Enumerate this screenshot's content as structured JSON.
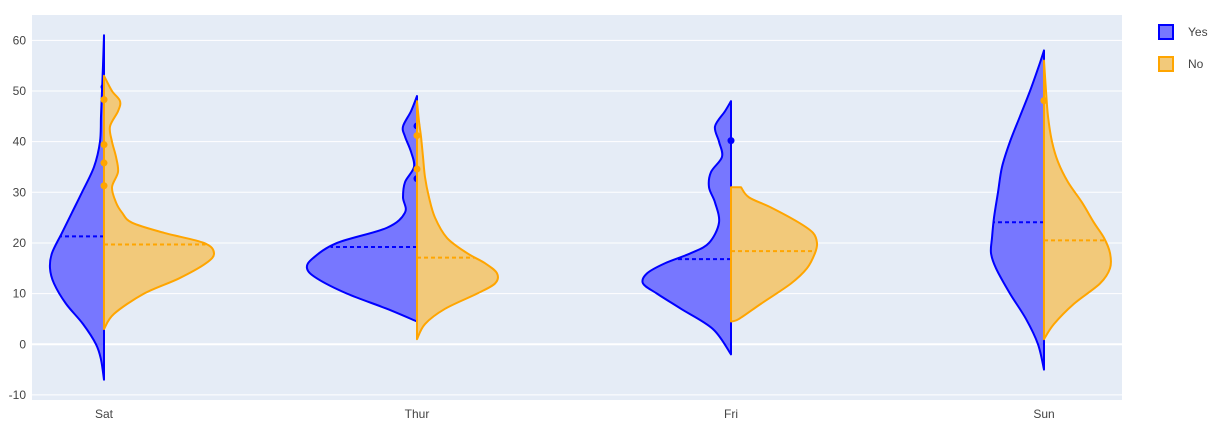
{
  "chart_data": {
    "type": "violin",
    "categories": [
      "Sat",
      "Thur",
      "Fri",
      "Sun"
    ],
    "ylim": [
      -11,
      65
    ],
    "yticks": [
      -10,
      0,
      10,
      20,
      30,
      40,
      50,
      60
    ],
    "grid": true,
    "legend_position": "top-right",
    "series": [
      {
        "name": "Yes",
        "side": "negative",
        "color": "#0000ff",
        "fill": "#7777ff",
        "violins": [
          {
            "category": "Sat",
            "range": [
              -7,
              61
            ],
            "mean": 21.3,
            "width_profile": [
              [
                -7,
                0
              ],
              [
                -3,
                3
              ],
              [
                0,
                8
              ],
              [
                4,
                21
              ],
              [
                8,
                38
              ],
              [
                12,
                50
              ],
              [
                15,
                54
              ],
              [
                18,
                52
              ],
              [
                22,
                42
              ],
              [
                26,
                32
              ],
              [
                30,
                22
              ],
              [
                35,
                10
              ],
              [
                40,
                4
              ],
              [
                45,
                3
              ],
              [
                50,
                2
              ],
              [
                55,
                1
              ],
              [
                61,
                0
              ]
            ],
            "outliers": [
              50.8,
              48.3
            ]
          },
          {
            "category": "Thur",
            "range": [
              4.5,
              49
            ],
            "mean": 19.2,
            "width_profile": [
              [
                4.5,
                0
              ],
              [
                7,
                30
              ],
              [
                10,
                70
              ],
              [
                13,
                100
              ],
              [
                15,
                110
              ],
              [
                17,
                104
              ],
              [
                20,
                80
              ],
              [
                23,
                30
              ],
              [
                26,
                12
              ],
              [
                29,
                14
              ],
              [
                32,
                12
              ],
              [
                35,
                3
              ],
              [
                38,
                6
              ],
              [
                41,
                12
              ],
              [
                43,
                14
              ],
              [
                46,
                6
              ],
              [
                49,
                0
              ]
            ],
            "outliers": [
              43.1,
              32.7
            ]
          },
          {
            "category": "Fri",
            "range": [
              -2,
              48
            ],
            "mean": 16.8,
            "width_profile": [
              [
                -2,
                0
              ],
              [
                3,
                18
              ],
              [
                7,
                50
              ],
              [
                10,
                74
              ],
              [
                12,
                88
              ],
              [
                14,
                84
              ],
              [
                16,
                66
              ],
              [
                18,
                40
              ],
              [
                20,
                22
              ],
              [
                24,
                12
              ],
              [
                28,
                16
              ],
              [
                31,
                22
              ],
              [
                34,
                20
              ],
              [
                37,
                9
              ],
              [
                40,
                12
              ],
              [
                43,
                16
              ],
              [
                46,
                6
              ],
              [
                48,
                0
              ]
            ],
            "outliers": [
              40.2
            ]
          },
          {
            "category": "Sun",
            "range": [
              -5,
              58
            ],
            "mean": 24.1,
            "width_profile": [
              [
                -5,
                0
              ],
              [
                0,
                6
              ],
              [
                5,
                18
              ],
              [
                10,
                34
              ],
              [
                15,
                48
              ],
              [
                18,
                53
              ],
              [
                21,
                52
              ],
              [
                25,
                50
              ],
              [
                30,
                46
              ],
              [
                35,
                42
              ],
              [
                40,
                34
              ],
              [
                45,
                24
              ],
              [
                50,
                14
              ],
              [
                55,
                5
              ],
              [
                58,
                0
              ]
            ],
            "outliers": []
          }
        ]
      },
      {
        "name": "No",
        "side": "positive",
        "color": "#ffa500",
        "fill": "#f2c97a",
        "violins": [
          {
            "category": "Sat",
            "range": [
              3,
              53
            ],
            "mean": 19.7,
            "width_profile": [
              [
                3,
                0
              ],
              [
                6,
                10
              ],
              [
                10,
                40
              ],
              [
                13,
                75
              ],
              [
                16,
                102
              ],
              [
                18,
                110
              ],
              [
                20,
                100
              ],
              [
                22,
                60
              ],
              [
                24,
                28
              ],
              [
                26,
                18
              ],
              [
                28,
                12
              ],
              [
                31,
                8
              ],
              [
                34,
                14
              ],
              [
                37,
                12
              ],
              [
                40,
                8
              ],
              [
                43,
                6
              ],
              [
                46,
                14
              ],
              [
                48,
                16
              ],
              [
                50,
                8
              ],
              [
                53,
                0
              ]
            ],
            "outliers": [
              48.3,
              39.4,
              35.8,
              31.3
            ]
          },
          {
            "category": "Thur",
            "range": [
              1,
              48
            ],
            "mean": 17.1,
            "width_profile": [
              [
                1,
                0
              ],
              [
                4,
                8
              ],
              [
                7,
                28
              ],
              [
                10,
                60
              ],
              [
                12,
                78
              ],
              [
                14,
                80
              ],
              [
                16,
                68
              ],
              [
                18,
                50
              ],
              [
                21,
                30
              ],
              [
                25,
                18
              ],
              [
                29,
                12
              ],
              [
                33,
                8
              ],
              [
                37,
                6
              ],
              [
                41,
                4
              ],
              [
                44,
                2
              ],
              [
                48,
                0
              ]
            ],
            "outliers": [
              41.2,
              34.6
            ]
          },
          {
            "category": "Fri",
            "range": [
              4.5,
              31
            ],
            "mean": 18.4,
            "width_profile": [
              [
                4.5,
                0
              ],
              [
                5,
                8
              ],
              [
                8,
                30
              ],
              [
                12,
                60
              ],
              [
                15,
                76
              ],
              [
                18,
                84
              ],
              [
                20,
                86
              ],
              [
                22,
                82
              ],
              [
                24,
                68
              ],
              [
                27,
                40
              ],
              [
                29,
                18
              ],
              [
                31,
                10
              ]
            ],
            "outliers": []
          },
          {
            "category": "Sun",
            "range": [
              1,
              56
            ],
            "mean": 20.5,
            "width_profile": [
              [
                1,
                0
              ],
              [
                4,
                10
              ],
              [
                8,
                30
              ],
              [
                12,
                56
              ],
              [
                15,
                66
              ],
              [
                18,
                66
              ],
              [
                21,
                60
              ],
              [
                24,
                50
              ],
              [
                28,
                38
              ],
              [
                32,
                24
              ],
              [
                36,
                14
              ],
              [
                40,
                8
              ],
              [
                45,
                4
              ],
              [
                50,
                2
              ],
              [
                56,
                0
              ]
            ],
            "outliers": [
              48.1
            ]
          }
        ]
      }
    ]
  }
}
